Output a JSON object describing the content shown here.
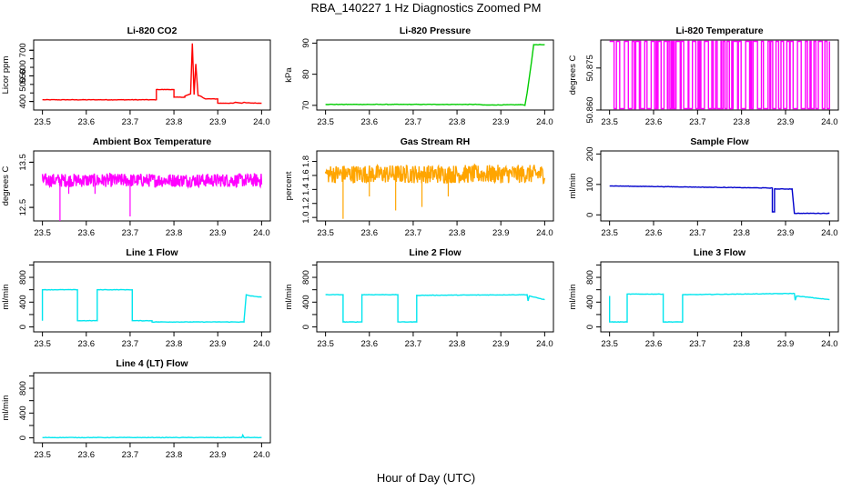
{
  "title": "RBA_140227  1 Hz Diagnostics Zoomed PM",
  "xlabel": "Hour of Day (UTC)",
  "chart_data": [
    {
      "type": "line",
      "title": "Li-820 CO2",
      "ylabel": "Licor ppm",
      "color": "#ff0000",
      "xlim": [
        23.48,
        24.02
      ],
      "ylim": [
        350,
        760
      ],
      "xticks": [
        23.5,
        23.6,
        23.7,
        23.8,
        23.9,
        24.0
      ],
      "xtick_labels": [
        "23.5",
        "23.6",
        "23.7",
        "23.8",
        "23.9",
        "24.0"
      ],
      "yticks": [
        400,
        550,
        700
      ],
      "ytick_labels": [
        "400",
        "550",
        "700"
      ],
      "yticks_minor": [
        400,
        450,
        500,
        550,
        600,
        650,
        700
      ],
      "ytick_minor_labels": [
        "400",
        "",
        "500",
        "",
        "600",
        "",
        "700"
      ],
      "x": [
        23.5,
        23.76,
        23.76,
        23.8,
        23.8,
        23.825,
        23.825,
        23.838,
        23.842,
        23.846,
        23.85,
        23.855,
        23.86,
        23.862,
        23.868,
        23.872,
        23.9,
        23.9,
        23.935,
        23.94,
        23.955,
        23.96,
        23.965,
        24.0
      ],
      "y": [
        410,
        410,
        470,
        470,
        425,
        425,
        432,
        445,
        740,
        440,
        620,
        435,
        432,
        430,
        420,
        415,
        415,
        390,
        390,
        395,
        390,
        395,
        392,
        390
      ]
    },
    {
      "type": "line",
      "title": "Li-820 Pressure",
      "ylabel": "kPa",
      "color": "#00cc00",
      "xlim": [
        23.48,
        24.02
      ],
      "ylim": [
        68.5,
        91
      ],
      "xticks": [
        23.5,
        23.6,
        23.7,
        23.8,
        23.9,
        24.0
      ],
      "xtick_labels": [
        "23.5",
        "23.6",
        "23.7",
        "23.8",
        "23.9",
        "24.0"
      ],
      "yticks": [
        70,
        80,
        90
      ],
      "ytick_labels": [
        "70",
        "80",
        "90"
      ],
      "x": [
        23.5,
        23.85,
        23.86,
        23.95,
        23.955,
        23.96,
        23.97,
        23.975,
        24.0
      ],
      "y": [
        70.3,
        70.3,
        70.1,
        70.2,
        70.0,
        74,
        84,
        89.5,
        89.5
      ]
    },
    {
      "type": "line",
      "title": "Li-820 Temperature",
      "ylabel": "degrees C",
      "color": "#ff00ff",
      "xlim": [
        23.48,
        24.02
      ],
      "ylim": [
        50.86,
        50.885
      ],
      "xticks": [
        23.5,
        23.6,
        23.7,
        23.8,
        23.9,
        24.0
      ],
      "xtick_labels": [
        "23.5",
        "23.6",
        "23.7",
        "23.8",
        "23.9",
        "24.0"
      ],
      "yticks": [
        50.86,
        50.875
      ],
      "ytick_labels": [
        "50.860",
        "50.875"
      ],
      "toggle_lo": 50.8605,
      "toggle_hi": 50.8845
    },
    {
      "type": "line",
      "title": "Ambient Box Temperature",
      "ylabel": "degrees C",
      "color": "#ff00ff",
      "xlim": [
        23.48,
        24.02
      ],
      "ylim": [
        12.2,
        13.75
      ],
      "xticks": [
        23.5,
        23.6,
        23.7,
        23.8,
        23.9,
        24.0
      ],
      "xtick_labels": [
        "23.5",
        "23.6",
        "23.7",
        "23.8",
        "23.9",
        "24.0"
      ],
      "yticks": [
        12.5,
        13.5
      ],
      "ytick_labels": [
        "12.5",
        "13.5"
      ],
      "yticks_minor": [
        12.5,
        13.0,
        13.5
      ],
      "ytick_minor_labels": [
        "12.5",
        "",
        "13.5"
      ],
      "center": 13.1,
      "spread": 0.25,
      "spikes": [
        [
          23.54,
          12.2
        ],
        [
          23.56,
          12.8
        ],
        [
          23.7,
          12.3
        ],
        [
          23.62,
          12.8
        ]
      ]
    },
    {
      "type": "line",
      "title": "Gas Stream RH",
      "ylabel": "percent",
      "color": "#ffa500",
      "xlim": [
        23.48,
        24.02
      ],
      "ylim": [
        0.95,
        1.95
      ],
      "xticks": [
        23.5,
        23.6,
        23.7,
        23.8,
        23.9,
        24.0
      ],
      "xtick_labels": [
        "23.5",
        "23.6",
        "23.7",
        "23.8",
        "23.9",
        "24.0"
      ],
      "yticks": [
        1.0,
        1.2,
        1.4,
        1.6,
        1.8
      ],
      "ytick_labels": [
        "1.0",
        "1.2",
        "1.4",
        "1.6",
        "1.8"
      ],
      "center": 1.62,
      "spread": 0.22,
      "spikes": [
        [
          23.54,
          0.98
        ],
        [
          23.66,
          1.1
        ],
        [
          23.72,
          1.15
        ],
        [
          23.6,
          1.3
        ],
        [
          23.78,
          1.3
        ]
      ]
    },
    {
      "type": "line",
      "title": "Sample Flow",
      "ylabel": "ml/min",
      "color": "#0000cc",
      "xlim": [
        23.48,
        24.02
      ],
      "ylim": [
        -20,
        210
      ],
      "xticks": [
        23.5,
        23.6,
        23.7,
        23.8,
        23.9,
        24.0
      ],
      "xtick_labels": [
        "23.5",
        "23.6",
        "23.7",
        "23.8",
        "23.9",
        "24.0"
      ],
      "yticks": [
        0,
        100,
        200
      ],
      "ytick_labels": [
        "0",
        "100",
        "200"
      ],
      "x": [
        23.5,
        23.87,
        23.87,
        23.875,
        23.875,
        23.915,
        23.92,
        24.0
      ],
      "y": [
        95,
        88,
        10,
        10,
        85,
        85,
        5,
        5
      ]
    },
    {
      "type": "line",
      "title": "Line 1 Flow",
      "ylabel": "ml/min",
      "color": "#00e5ee",
      "xlim": [
        23.48,
        24.02
      ],
      "ylim": [
        -80,
        1050
      ],
      "xticks": [
        23.5,
        23.6,
        23.7,
        23.8,
        23.9,
        24.0
      ],
      "xtick_labels": [
        "23.5",
        "23.6",
        "23.7",
        "23.8",
        "23.9",
        "24.0"
      ],
      "yticks": [
        0,
        200,
        400,
        600,
        800,
        1000
      ],
      "ytick_labels": [
        "0",
        "",
        "400",
        "",
        "800",
        ""
      ],
      "x": [
        23.5,
        23.5,
        23.503,
        23.58,
        23.58,
        23.625,
        23.625,
        23.705,
        23.705,
        23.75,
        23.75,
        23.96,
        23.96,
        23.965,
        23.975,
        24.0
      ],
      "y": [
        100,
        600,
        600,
        600,
        100,
        100,
        600,
        600,
        100,
        100,
        80,
        80,
        100,
        520,
        500,
        480
      ]
    },
    {
      "type": "line",
      "title": "Line 2 Flow",
      "ylabel": "ml/min",
      "color": "#00e5ee",
      "xlim": [
        23.48,
        24.02
      ],
      "ylim": [
        -80,
        1050
      ],
      "xticks": [
        23.5,
        23.6,
        23.7,
        23.8,
        23.9,
        24.0
      ],
      "xtick_labels": [
        "23.5",
        "23.6",
        "23.7",
        "23.8",
        "23.9",
        "24.0"
      ],
      "yticks": [
        0,
        200,
        400,
        600,
        800,
        1000
      ],
      "ytick_labels": [
        "0",
        "",
        "400",
        "",
        "800",
        ""
      ],
      "x": [
        23.5,
        23.54,
        23.54,
        23.583,
        23.583,
        23.665,
        23.665,
        23.708,
        23.708,
        23.96,
        23.962,
        23.965,
        24.0
      ],
      "y": [
        520,
        520,
        80,
        80,
        520,
        520,
        80,
        80,
        510,
        520,
        420,
        500,
        440
      ]
    },
    {
      "type": "line",
      "title": "Line 3 Flow",
      "ylabel": "ml/min",
      "color": "#00e5ee",
      "xlim": [
        23.48,
        24.02
      ],
      "ylim": [
        -80,
        1050
      ],
      "xticks": [
        23.5,
        23.6,
        23.7,
        23.8,
        23.9,
        24.0
      ],
      "xtick_labels": [
        "23.5",
        "23.6",
        "23.7",
        "23.8",
        "23.9",
        "24.0"
      ],
      "yticks": [
        0,
        200,
        400,
        600,
        800,
        1000
      ],
      "ytick_labels": [
        "0",
        "",
        "400",
        "",
        "800",
        ""
      ],
      "x": [
        23.5,
        23.5,
        23.502,
        23.54,
        23.54,
        23.622,
        23.622,
        23.666,
        23.666,
        23.92,
        23.922,
        23.925,
        24.0
      ],
      "y": [
        500,
        80,
        80,
        80,
        530,
        530,
        80,
        80,
        520,
        540,
        430,
        500,
        440
      ]
    },
    {
      "type": "line",
      "title": "Line 4 (LT) Flow",
      "ylabel": "ml/min",
      "color": "#00e5ee",
      "xlim": [
        23.48,
        24.02
      ],
      "ylim": [
        -80,
        1050
      ],
      "xticks": [
        23.5,
        23.6,
        23.7,
        23.8,
        23.9,
        24.0
      ],
      "xtick_labels": [
        "23.5",
        "23.6",
        "23.7",
        "23.8",
        "23.9",
        "24.0"
      ],
      "yticks": [
        0,
        200,
        400,
        600,
        800,
        1000
      ],
      "ytick_labels": [
        "0",
        "",
        "400",
        "",
        "800",
        ""
      ],
      "x": [
        23.5,
        23.955,
        23.957,
        23.96,
        24.0
      ],
      "y": [
        5,
        5,
        45,
        5,
        5
      ]
    }
  ]
}
